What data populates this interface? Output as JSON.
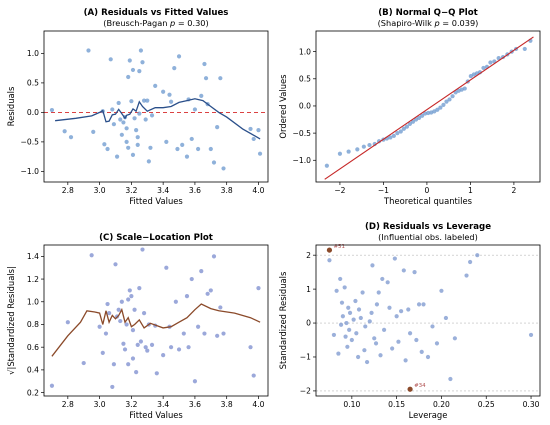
{
  "chart_data": [
    {
      "id": "A",
      "type": "scatter",
      "title": "(A) Residuals vs Fitted Values",
      "subtitle_parts": [
        "(Breusch-Pagan ",
        "p",
        " = 0.30)"
      ],
      "xlabel": "Fitted Values",
      "ylabel": "Residuals",
      "xlim": [
        2.65,
        4.06
      ],
      "ylim": [
        -1.18,
        1.38
      ],
      "xticks": [
        2.8,
        3.0,
        3.2,
        3.4,
        3.6,
        3.8,
        4.0
      ],
      "xtick_labels": [
        "2.8",
        "3.0",
        "3.2",
        "3.4",
        "3.6",
        "3.8",
        "4.0"
      ],
      "yticks": [
        -1.0,
        -0.5,
        0.0,
        0.5,
        1.0
      ],
      "ytick_labels": [
        "−1.0",
        "−0.5",
        "0.0",
        "0.5",
        "1.0"
      ],
      "reference_line": {
        "y": 0,
        "color": "#d62728",
        "style": "dashed"
      },
      "points": [
        [
          2.7,
          0.04
        ],
        [
          2.78,
          -0.32
        ],
        [
          2.82,
          -0.42
        ],
        [
          2.93,
          1.05
        ],
        [
          2.96,
          -0.33
        ],
        [
          3.02,
          0.02
        ],
        [
          3.03,
          -0.54
        ],
        [
          3.05,
          -0.62
        ],
        [
          3.07,
          0.9
        ],
        [
          3.08,
          0.05
        ],
        [
          3.09,
          -0.2
        ],
        [
          3.11,
          -0.75
        ],
        [
          3.12,
          0.16
        ],
        [
          3.13,
          -0.12
        ],
        [
          3.14,
          -0.38
        ],
        [
          3.15,
          -0.17
        ],
        [
          3.16,
          -0.08
        ],
        [
          3.17,
          -0.27
        ],
        [
          3.17,
          -0.5
        ],
        [
          3.18,
          -0.6
        ],
        [
          3.18,
          0.6
        ],
        [
          3.19,
          0.88
        ],
        [
          3.2,
          0.19
        ],
        [
          3.21,
          0.72
        ],
        [
          3.21,
          -0.72
        ],
        [
          3.22,
          -0.1
        ],
        [
          3.23,
          -0.3
        ],
        [
          3.24,
          -0.42
        ],
        [
          3.24,
          -0.55
        ],
        [
          3.25,
          0.7
        ],
        [
          3.25,
          -0.02
        ],
        [
          3.26,
          1.05
        ],
        [
          3.27,
          0.85
        ],
        [
          3.28,
          0.2
        ],
        [
          3.29,
          -0.12
        ],
        [
          3.3,
          0.2
        ],
        [
          3.31,
          -0.83
        ],
        [
          3.32,
          -0.6
        ],
        [
          3.33,
          -0.05
        ],
        [
          3.35,
          0.45
        ],
        [
          3.4,
          0.35
        ],
        [
          3.42,
          -0.5
        ],
        [
          3.44,
          0.3
        ],
        [
          3.45,
          0.18
        ],
        [
          3.47,
          0.75
        ],
        [
          3.49,
          -0.62
        ],
        [
          3.5,
          0.95
        ],
        [
          3.52,
          -0.55
        ],
        [
          3.55,
          -0.75
        ],
        [
          3.56,
          0.22
        ],
        [
          3.58,
          -0.45
        ],
        [
          3.6,
          0.05
        ],
        [
          3.62,
          -0.62
        ],
        [
          3.64,
          0.28
        ],
        [
          3.66,
          0.82
        ],
        [
          3.67,
          0.58
        ],
        [
          3.68,
          0.14
        ],
        [
          3.7,
          -0.62
        ],
        [
          3.72,
          -0.85
        ],
        [
          3.74,
          -0.25
        ],
        [
          3.76,
          0.58
        ],
        [
          3.78,
          -0.95
        ],
        [
          3.95,
          -0.28
        ],
        [
          3.97,
          -0.45
        ],
        [
          4.0,
          -0.3
        ],
        [
          4.01,
          -0.7
        ]
      ],
      "trend_line": [
        [
          2.72,
          -0.14
        ],
        [
          2.85,
          -0.1
        ],
        [
          2.95,
          -0.06
        ],
        [
          3.0,
          0.0
        ],
        [
          3.02,
          0.03
        ],
        [
          3.04,
          -0.16
        ],
        [
          3.06,
          -0.15
        ],
        [
          3.08,
          -0.04
        ],
        [
          3.1,
          -0.03
        ],
        [
          3.12,
          0.05
        ],
        [
          3.14,
          -0.02
        ],
        [
          3.16,
          -0.1
        ],
        [
          3.17,
          -0.05
        ],
        [
          3.19,
          -0.03
        ],
        [
          3.21,
          0.06
        ],
        [
          3.23,
          0.02
        ],
        [
          3.25,
          0.18
        ],
        [
          3.27,
          0.1
        ],
        [
          3.3,
          0.02
        ],
        [
          3.35,
          0.08
        ],
        [
          3.4,
          0.08
        ],
        [
          3.45,
          0.1
        ],
        [
          3.5,
          0.17
        ],
        [
          3.55,
          0.2
        ],
        [
          3.6,
          0.23
        ],
        [
          3.65,
          0.2
        ],
        [
          3.7,
          0.1
        ],
        [
          3.75,
          0.0
        ],
        [
          3.8,
          -0.08
        ],
        [
          3.9,
          -0.28
        ],
        [
          4.01,
          -0.45
        ]
      ],
      "point_color": "#6f9bd0",
      "line_color": "#2a4f8a"
    },
    {
      "id": "B",
      "type": "scatter",
      "title": "(B) Normal Q−Q Plot",
      "subtitle_parts": [
        "(Shapiro-Wilk ",
        "p",
        " = 0.039)"
      ],
      "xlabel": "Theoretical quantiles",
      "ylabel": "Ordered Values",
      "xlim": [
        -2.55,
        2.6
      ],
      "ylim": [
        -1.4,
        1.38
      ],
      "xticks": [
        -2,
        -1,
        0,
        1,
        2
      ],
      "xtick_labels": [
        "−2",
        "−1",
        "0",
        "1",
        "2"
      ],
      "yticks": [
        -1.0,
        -0.5,
        0.0,
        0.5,
        1.0
      ],
      "ytick_labels": [
        "−1.0",
        "−0.5",
        "0.0",
        "0.5",
        "1.0"
      ],
      "reference_line": {
        "from": [
          -2.35,
          -1.35
        ],
        "to": [
          2.45,
          1.27
        ],
        "color": "#c62828"
      },
      "points": [
        [
          -2.3,
          -1.1
        ],
        [
          -2.0,
          -0.88
        ],
        [
          -1.8,
          -0.84
        ],
        [
          -1.6,
          -0.8
        ],
        [
          -1.45,
          -0.75
        ],
        [
          -1.32,
          -0.72
        ],
        [
          -1.2,
          -0.7
        ],
        [
          -1.1,
          -0.65
        ],
        [
          -1.0,
          -0.62
        ],
        [
          -0.92,
          -0.6
        ],
        [
          -0.84,
          -0.58
        ],
        [
          -0.76,
          -0.55
        ],
        [
          -0.68,
          -0.5
        ],
        [
          -0.6,
          -0.47
        ],
        [
          -0.53,
          -0.42
        ],
        [
          -0.46,
          -0.38
        ],
        [
          -0.39,
          -0.33
        ],
        [
          -0.32,
          -0.29
        ],
        [
          -0.25,
          -0.25
        ],
        [
          -0.18,
          -0.22
        ],
        [
          -0.11,
          -0.18
        ],
        [
          -0.04,
          -0.14
        ],
        [
          0.03,
          -0.13
        ],
        [
          0.1,
          -0.12
        ],
        [
          0.17,
          -0.1
        ],
        [
          0.24,
          -0.07
        ],
        [
          0.31,
          -0.03
        ],
        [
          0.38,
          0.02
        ],
        [
          0.45,
          0.08
        ],
        [
          0.52,
          0.12
        ],
        [
          0.59,
          0.18
        ],
        [
          0.66,
          0.25
        ],
        [
          0.73,
          0.28
        ],
        [
          0.8,
          0.3
        ],
        [
          0.87,
          0.32
        ],
        [
          0.94,
          0.45
        ],
        [
          1.01,
          0.55
        ],
        [
          1.08,
          0.58
        ],
        [
          1.15,
          0.6
        ],
        [
          1.22,
          0.62
        ],
        [
          1.3,
          0.7
        ],
        [
          1.38,
          0.72
        ],
        [
          1.46,
          0.8
        ],
        [
          1.55,
          0.82
        ],
        [
          1.65,
          0.88
        ],
        [
          1.75,
          0.9
        ],
        [
          1.85,
          0.95
        ],
        [
          1.95,
          1.0
        ],
        [
          2.05,
          1.05
        ],
        [
          2.25,
          1.05
        ],
        [
          2.38,
          1.2
        ]
      ],
      "point_color": "#6f9bd0"
    },
    {
      "id": "C",
      "type": "scatter",
      "title": "(C) Scale−Location Plot",
      "xlabel": "Fitted Values",
      "ylabel": "√|Standardized Residuals|",
      "xlim": [
        2.65,
        4.06
      ],
      "ylim": [
        0.17,
        1.5
      ],
      "xticks": [
        2.8,
        3.0,
        3.2,
        3.4,
        3.6,
        3.8,
        4.0
      ],
      "xtick_labels": [
        "2.8",
        "3.0",
        "3.2",
        "3.4",
        "3.6",
        "3.8",
        "4.0"
      ],
      "yticks": [
        0.2,
        0.4,
        0.6,
        0.8,
        1.0,
        1.2,
        1.4
      ],
      "ytick_labels": [
        "0.2",
        "0.4",
        "0.6",
        "0.8",
        "1.0",
        "1.2",
        "1.4"
      ],
      "points": [
        [
          2.7,
          0.26
        ],
        [
          2.8,
          0.82
        ],
        [
          2.9,
          0.46
        ],
        [
          2.95,
          1.41
        ],
        [
          3.0,
          0.78
        ],
        [
          3.02,
          0.55
        ],
        [
          3.04,
          0.72
        ],
        [
          3.05,
          0.98
        ],
        [
          3.06,
          0.9
        ],
        [
          3.08,
          0.25
        ],
        [
          3.09,
          0.45
        ],
        [
          3.1,
          1.33
        ],
        [
          3.11,
          0.87
        ],
        [
          3.12,
          0.93
        ],
        [
          3.13,
          0.83
        ],
        [
          3.14,
          1.0
        ],
        [
          3.15,
          0.63
        ],
        [
          3.16,
          0.58
        ],
        [
          3.17,
          0.8
        ],
        [
          3.18,
          1.02
        ],
        [
          3.18,
          0.45
        ],
        [
          3.19,
          1.1
        ],
        [
          3.2,
          1.05
        ],
        [
          3.21,
          0.75
        ],
        [
          3.21,
          0.5
        ],
        [
          3.22,
          0.93
        ],
        [
          3.23,
          0.38
        ],
        [
          3.24,
          0.62
        ],
        [
          3.25,
          1.12
        ],
        [
          3.26,
          0.65
        ],
        [
          3.27,
          1.46
        ],
        [
          3.28,
          0.9
        ],
        [
          3.29,
          0.6
        ],
        [
          3.3,
          0.57
        ],
        [
          3.31,
          0.8
        ],
        [
          3.33,
          0.62
        ],
        [
          3.35,
          0.79
        ],
        [
          3.36,
          0.37
        ],
        [
          3.4,
          0.53
        ],
        [
          3.42,
          1.3
        ],
        [
          3.44,
          0.78
        ],
        [
          3.45,
          0.6
        ],
        [
          3.48,
          1.0
        ],
        [
          3.5,
          0.58
        ],
        [
          3.53,
          0.72
        ],
        [
          3.55,
          1.05
        ],
        [
          3.56,
          0.6
        ],
        [
          3.58,
          1.2
        ],
        [
          3.6,
          0.3
        ],
        [
          3.62,
          0.78
        ],
        [
          3.64,
          1.27
        ],
        [
          3.66,
          0.72
        ],
        [
          3.68,
          1.07
        ],
        [
          3.7,
          1.1
        ],
        [
          3.72,
          1.4
        ],
        [
          3.74,
          0.7
        ],
        [
          3.76,
          0.95
        ],
        [
          3.78,
          0.72
        ],
        [
          3.95,
          0.6
        ],
        [
          3.97,
          0.35
        ],
        [
          4.0,
          1.12
        ]
      ],
      "trend_line": [
        [
          2.7,
          0.52
        ],
        [
          2.8,
          0.7
        ],
        [
          2.88,
          0.82
        ],
        [
          2.92,
          0.92
        ],
        [
          2.97,
          0.91
        ],
        [
          3.0,
          0.9
        ],
        [
          3.02,
          0.8
        ],
        [
          3.04,
          0.92
        ],
        [
          3.06,
          0.82
        ],
        [
          3.08,
          0.88
        ],
        [
          3.1,
          0.85
        ],
        [
          3.12,
          0.88
        ],
        [
          3.14,
          0.93
        ],
        [
          3.16,
          0.82
        ],
        [
          3.18,
          0.86
        ],
        [
          3.2,
          0.78
        ],
        [
          3.22,
          0.8
        ],
        [
          3.25,
          0.84
        ],
        [
          3.28,
          0.77
        ],
        [
          3.32,
          0.81
        ],
        [
          3.36,
          0.79
        ],
        [
          3.4,
          0.77
        ],
        [
          3.45,
          0.78
        ],
        [
          3.5,
          0.82
        ],
        [
          3.55,
          0.86
        ],
        [
          3.6,
          0.93
        ],
        [
          3.64,
          0.98
        ],
        [
          3.7,
          0.94
        ],
        [
          3.75,
          0.92
        ],
        [
          3.85,
          0.9
        ],
        [
          3.95,
          0.86
        ],
        [
          4.01,
          0.82
        ]
      ],
      "point_color": "#7f8fd0",
      "line_color": "#8b4a2a"
    },
    {
      "id": "D",
      "type": "scatter",
      "title": "(D) Residuals vs Leverage",
      "subtitle": "(Influential obs. labeled)",
      "xlabel": "Leverage",
      "ylabel": "Standardized Residuals",
      "xlim": [
        0.06,
        0.31
      ],
      "ylim": [
        -2.15,
        2.3
      ],
      "xticks": [
        0.1,
        0.15,
        0.2,
        0.25,
        0.3
      ],
      "xtick_labels": [
        "0.10",
        "0.15",
        "0.20",
        "0.25",
        "0.30"
      ],
      "yticks": [
        -2,
        -1,
        0,
        1,
        2
      ],
      "ytick_labels": [
        "−2",
        "−1",
        "0",
        "1",
        "2"
      ],
      "reference_lines": [
        2,
        0,
        -2
      ],
      "points": [
        [
          0.075,
          1.85
        ],
        [
          0.08,
          -0.35
        ],
        [
          0.083,
          0.95
        ],
        [
          0.085,
          -0.9
        ],
        [
          0.087,
          1.3
        ],
        [
          0.088,
          -0.05
        ],
        [
          0.089,
          0.6
        ],
        [
          0.09,
          0.2
        ],
        [
          0.092,
          1.05
        ],
        [
          0.093,
          -0.4
        ],
        [
          0.094,
          0.0
        ],
        [
          0.095,
          -0.7
        ],
        [
          0.096,
          0.45
        ],
        [
          0.097,
          -0.2
        ],
        [
          0.098,
          0.3
        ],
        [
          0.1,
          -0.5
        ],
        [
          0.102,
          0.1
        ],
        [
          0.104,
          0.65
        ],
        [
          0.105,
          -0.3
        ],
        [
          0.107,
          -1.0
        ],
        [
          0.108,
          0.4
        ],
        [
          0.11,
          0.15
        ],
        [
          0.112,
          0.9
        ],
        [
          0.114,
          -0.8
        ],
        [
          0.115,
          -0.1
        ],
        [
          0.117,
          -1.15
        ],
        [
          0.12,
          0.05
        ],
        [
          0.122,
          0.3
        ],
        [
          0.123,
          1.7
        ],
        [
          0.125,
          -0.45
        ],
        [
          0.127,
          -0.6
        ],
        [
          0.128,
          0.55
        ],
        [
          0.13,
          0.9
        ],
        [
          0.132,
          -0.95
        ],
        [
          0.134,
          1.3
        ],
        [
          0.136,
          -0.2
        ],
        [
          0.14,
          1.2
        ],
        [
          0.142,
          0.45
        ],
        [
          0.145,
          -0.75
        ],
        [
          0.148,
          1.9
        ],
        [
          0.15,
          0.2
        ],
        [
          0.152,
          -0.55
        ],
        [
          0.155,
          0.35
        ],
        [
          0.158,
          1.55
        ],
        [
          0.16,
          -1.1
        ],
        [
          0.163,
          0.4
        ],
        [
          0.165,
          -0.3
        ],
        [
          0.17,
          1.5
        ],
        [
          0.172,
          -0.5
        ],
        [
          0.175,
          0.55
        ],
        [
          0.178,
          -0.85
        ],
        [
          0.18,
          0.55
        ],
        [
          0.185,
          -1.0
        ],
        [
          0.19,
          -0.1
        ],
        [
          0.195,
          -0.6
        ],
        [
          0.2,
          0.95
        ],
        [
          0.205,
          0.15
        ],
        [
          0.21,
          -1.65
        ],
        [
          0.215,
          -0.45
        ],
        [
          0.228,
          1.4
        ],
        [
          0.232,
          1.8
        ],
        [
          0.24,
          2.0
        ],
        [
          0.3,
          -0.35
        ]
      ],
      "labeled_points": [
        {
          "label": "#51",
          "x": 0.075,
          "y": 2.15
        },
        {
          "label": "#34",
          "x": 0.165,
          "y": -1.95
        }
      ],
      "point_color": "#7f9ad0",
      "label_color": "#8b4a2a"
    }
  ]
}
